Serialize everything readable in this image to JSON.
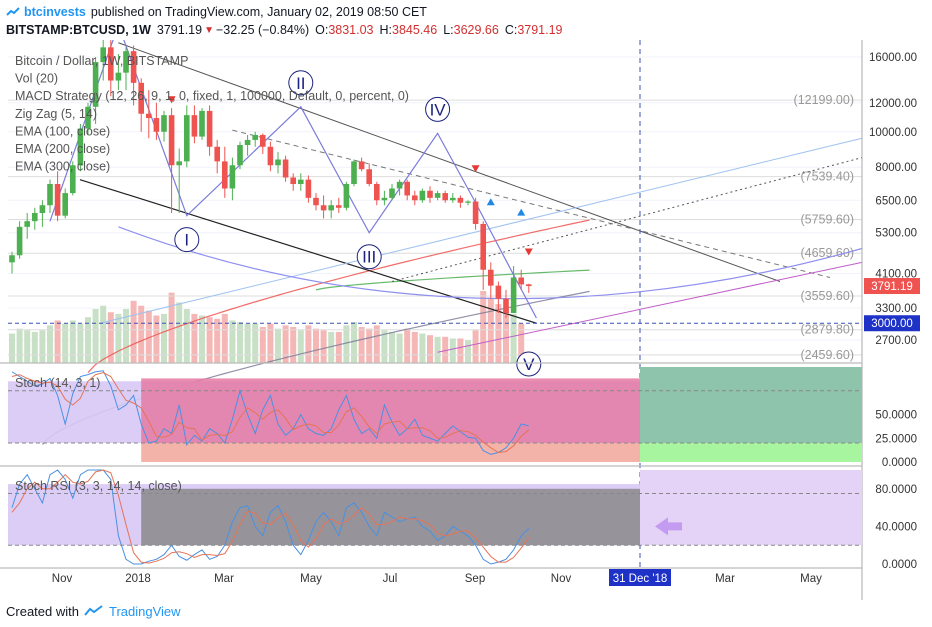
{
  "header": {
    "author": "btcinvests",
    "published": "published on TradingView.com, January 02, 2019 08:50 CET",
    "symbol": "BITSTAMP:BTCUSD, 1W",
    "price": "3791.19",
    "change": "−32.25 (−0.84%)",
    "o_label": "O:",
    "o_value": "3831.03",
    "h_label": "H:",
    "h_value": "3845.46",
    "l_label": "L:",
    "l_value": "3629.66",
    "c_label": "C:",
    "c_value": "3791.19"
  },
  "footer": {
    "created": "Created with",
    "brand": "TradingView"
  },
  "colors": {
    "up": "#4caf50",
    "down": "#ef5350",
    "accent": "#2196f3",
    "pivot": "#1a237e",
    "price_label": "#ef5350",
    "crosshair_label": "#1e32c8"
  },
  "chart_data": [
    {
      "type": "candlestick",
      "legend": [
        "Bitcoin / Dollar, 1W, BITSTAMP",
        "Vol (20)",
        "MACD Strategy (12, 26, 9, 1, 0, fixed, 1, 100000, Default, 0, percent, 0)",
        "Zig Zag (5, 14)",
        "EMA (100, close)",
        "EMA (200, close)",
        "EMA (300, close)"
      ],
      "scale": "log",
      "y_ticks": [
        "16000.00",
        "12000.00",
        "10000.00",
        "8000.00",
        "6500.00",
        "5300.00",
        "4100.00",
        "3300.00",
        "2700.00"
      ],
      "x_ticks": [
        "Nov",
        "2018",
        "Mar",
        "May",
        "Jul",
        "Sep",
        "Nov",
        "Mar",
        "May"
      ],
      "crosshair_date": "31 Dec '18",
      "price_label": "3791.19",
      "crosshair_label": "3000.00",
      "fib_levels": [
        {
          "value": 12199,
          "label": "(12199.00)"
        },
        {
          "value": 7539,
          "label": "(7539.40)"
        },
        {
          "value": 5759.6,
          "label": "(5759.60)"
        },
        {
          "value": 4659.6,
          "label": "(4659.60)"
        },
        {
          "value": 3559.6,
          "label": "(3559.60)"
        },
        {
          "value": 2879.8,
          "label": "(2879.80)"
        },
        {
          "value": 2459.6,
          "label": "(2459.60)"
        }
      ],
      "waves": [
        {
          "label": "I",
          "value": 5900
        },
        {
          "label": "II",
          "value": 11700
        },
        {
          "label": "III",
          "value": 5300
        },
        {
          "label": "IV",
          "value": 9900
        },
        {
          "label": "V",
          "value": 2700
        }
      ],
      "ohlc": [
        [
          4400,
          4700,
          4100,
          4600
        ],
        [
          4600,
          5700,
          4500,
          5500
        ],
        [
          5500,
          6000,
          5100,
          5700
        ],
        [
          5700,
          6200,
          5400,
          6000
        ],
        [
          6000,
          6500,
          5500,
          6300
        ],
        [
          6300,
          7400,
          6000,
          7200
        ],
        [
          7200,
          7800,
          5700,
          5900
        ],
        [
          5900,
          7000,
          5800,
          6800
        ],
        [
          6800,
          8300,
          6700,
          8100
        ],
        [
          8100,
          10500,
          7800,
          10200
        ],
        [
          10200,
          12000,
          9800,
          11700
        ],
        [
          11700,
          16000,
          10500,
          15500
        ],
        [
          15500,
          19600,
          13800,
          17000
        ],
        [
          17000,
          17800,
          12500,
          13800
        ],
        [
          13800,
          16300,
          13000,
          14500
        ],
        [
          14500,
          17000,
          13000,
          16600
        ],
        [
          16600,
          17200,
          11800,
          13600
        ],
        [
          13600,
          14000,
          10000,
          11200
        ],
        [
          11200,
          13000,
          9600,
          10900
        ],
        [
          10900,
          12000,
          9500,
          10000
        ],
        [
          10000,
          11400,
          9400,
          11100
        ],
        [
          11100,
          11600,
          6000,
          8100
        ],
        [
          8100,
          9000,
          6000,
          8300
        ],
        [
          8300,
          11800,
          8000,
          11100
        ],
        [
          11100,
          11800,
          9300,
          9700
        ],
        [
          9700,
          11600,
          9500,
          11400
        ],
        [
          11400,
          11800,
          8600,
          9100
        ],
        [
          9100,
          9500,
          7700,
          8300
        ],
        [
          8300,
          9100,
          6600,
          7000
        ],
        [
          7000,
          8500,
          6500,
          8100
        ],
        [
          8100,
          9400,
          7900,
          9200
        ],
        [
          9200,
          9800,
          8600,
          9500
        ],
        [
          9500,
          10000,
          9100,
          9800
        ],
        [
          9800,
          9900,
          8700,
          9100
        ],
        [
          9100,
          9400,
          7800,
          8100
        ],
        [
          8100,
          8800,
          7700,
          8400
        ],
        [
          8400,
          8600,
          7300,
          7500
        ],
        [
          7500,
          7700,
          6900,
          7200
        ],
        [
          7200,
          7700,
          6900,
          7400
        ],
        [
          7400,
          7600,
          6400,
          6600
        ],
        [
          6600,
          6800,
          6100,
          6300
        ],
        [
          6300,
          6700,
          5800,
          6100
        ],
        [
          6100,
          6500,
          5800,
          6300
        ],
        [
          6300,
          6600,
          6000,
          6200
        ],
        [
          6200,
          7300,
          6100,
          7200
        ],
        [
          7200,
          8400,
          7100,
          8300
        ],
        [
          8300,
          8500,
          7800,
          7900
        ],
        [
          7900,
          8200,
          7100,
          7200
        ],
        [
          7200,
          7300,
          6300,
          6500
        ],
        [
          6500,
          6900,
          6300,
          6600
        ],
        [
          6600,
          7200,
          6500,
          7000
        ],
        [
          7000,
          7400,
          6700,
          7300
        ],
        [
          7300,
          7400,
          6500,
          6700
        ],
        [
          6700,
          6900,
          6300,
          6500
        ],
        [
          6500,
          7000,
          6400,
          6900
        ],
        [
          6900,
          7100,
          6400,
          6600
        ],
        [
          6600,
          6900,
          6500,
          6800
        ],
        [
          6800,
          6900,
          6400,
          6500
        ],
        [
          6500,
          6800,
          6400,
          6600
        ],
        [
          6600,
          6700,
          6200,
          6400
        ],
        [
          6400,
          6500,
          6300,
          6450
        ],
        [
          6450,
          6600,
          5400,
          5600
        ],
        [
          5600,
          5700,
          3700,
          4200
        ],
        [
          4200,
          4400,
          3500,
          3800
        ],
        [
          3800,
          3900,
          3200,
          3500
        ],
        [
          3500,
          3700,
          3100,
          3200
        ],
        [
          3200,
          4300,
          3200,
          4000
        ],
        [
          4000,
          4200,
          3700,
          3830
        ],
        [
          3831.03,
          3845.46,
          3629.66,
          3791.19
        ]
      ],
      "volume": [
        18,
        21,
        20,
        19,
        20,
        23,
        26,
        24,
        26,
        24,
        28,
        33,
        35,
        31,
        30,
        33,
        38,
        35,
        32,
        29,
        30,
        43,
        37,
        33,
        30,
        29,
        28,
        27,
        30,
        26,
        25,
        24,
        24,
        22,
        24,
        21,
        23,
        22,
        20,
        23,
        21,
        20,
        19,
        19,
        23,
        25,
        22,
        21,
        23,
        20,
        19,
        18,
        21,
        19,
        18,
        17,
        16,
        16,
        15,
        15,
        14,
        20,
        44,
        40,
        36,
        33,
        30,
        24,
        6
      ],
      "ema": [
        {
          "values_start": 3700,
          "values_end": 4200,
          "color": "#4caf50"
        },
        {
          "values_start": 2200,
          "values_end": 5800,
          "color": "#ef5350"
        },
        {
          "values_start": 1400,
          "values_end": 3700,
          "color": "#7e7e9a"
        }
      ]
    },
    {
      "type": "line",
      "legend": "Stoch (14, 3, 1)",
      "y_ticks": [
        "50.0000",
        "25.0000",
        "0.0000"
      ],
      "ylim": [
        0,
        100
      ],
      "k": [
        95,
        90,
        85,
        80,
        82,
        88,
        70,
        40,
        72,
        90,
        92,
        95,
        96,
        80,
        55,
        60,
        70,
        40,
        20,
        22,
        35,
        30,
        60,
        18,
        28,
        22,
        35,
        30,
        20,
        45,
        75,
        50,
        30,
        55,
        70,
        40,
        28,
        35,
        50,
        35,
        30,
        28,
        35,
        55,
        70,
        45,
        30,
        35,
        25,
        60,
        42,
        28,
        35,
        45,
        28,
        25,
        22,
        30,
        38,
        32,
        26,
        25,
        12,
        8,
        10,
        15,
        25,
        40,
        38
      ],
      "d": [
        90,
        92,
        88,
        85,
        83,
        84,
        80,
        66,
        60,
        67,
        85,
        92,
        94,
        90,
        77,
        65,
        62,
        57,
        43,
        27,
        26,
        29,
        42,
        36,
        35,
        23,
        28,
        29,
        28,
        32,
        47,
        57,
        52,
        45,
        52,
        55,
        46,
        34,
        38,
        40,
        38,
        31,
        31,
        39,
        53,
        57,
        48,
        37,
        30,
        40,
        42,
        43,
        35,
        36,
        36,
        33,
        25,
        26,
        30,
        33,
        32,
        28,
        21,
        15,
        10,
        11,
        17,
        27,
        34
      ]
    },
    {
      "type": "line",
      "legend": "Stoch RSI (3, 3, 14, 14, close)",
      "y_ticks": [
        "80.0000",
        "40.0000",
        "0.0000"
      ],
      "ylim": [
        0,
        100
      ],
      "k": [
        60,
        85,
        95,
        80,
        65,
        95,
        100,
        90,
        70,
        95,
        100,
        100,
        100,
        90,
        30,
        5,
        0,
        0,
        3,
        5,
        10,
        20,
        8,
        4,
        10,
        15,
        5,
        8,
        20,
        45,
        60,
        62,
        40,
        30,
        55,
        62,
        45,
        20,
        10,
        25,
        45,
        55,
        45,
        30,
        60,
        65,
        55,
        40,
        30,
        55,
        50,
        45,
        48,
        50,
        40,
        35,
        25,
        30,
        40,
        35,
        30,
        20,
        5,
        0,
        2,
        5,
        15,
        30,
        38
      ],
      "d": [
        55,
        65,
        80,
        87,
        80,
        80,
        87,
        95,
        87,
        85,
        88,
        98,
        100,
        97,
        73,
        42,
        12,
        2,
        1,
        3,
        6,
        12,
        13,
        11,
        7,
        10,
        10,
        9,
        11,
        24,
        42,
        56,
        54,
        44,
        42,
        49,
        54,
        42,
        25,
        18,
        27,
        42,
        48,
        43,
        45,
        52,
        60,
        53,
        42,
        42,
        45,
        50,
        48,
        48,
        46,
        42,
        33,
        30,
        32,
        35,
        35,
        28,
        18,
        8,
        2,
        2,
        7,
        17,
        28
      ]
    }
  ]
}
